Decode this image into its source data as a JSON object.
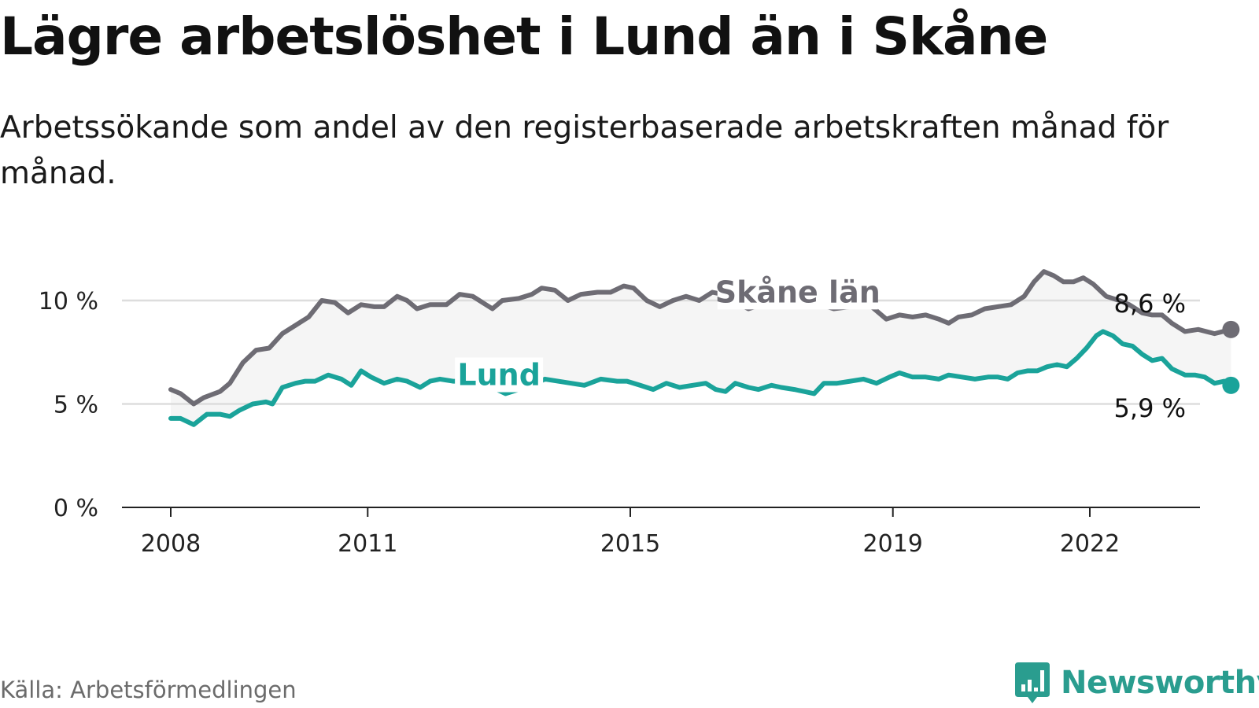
{
  "title": "Lägre arbetslöshet i Lund än i Skåne",
  "subtitle": "Arbetssökande som andel av den registerbaserade arbetskraften månad för månad.",
  "source": "Källa: Arbetsförmedlingen",
  "brand": "Newsworthy",
  "colors": {
    "skane": "#6e6c74",
    "lund": "#1aa39a",
    "band": "#f5f5f5",
    "grid": "#dddddd",
    "axis": "#222222",
    "brand": "#2a9d8f"
  },
  "chart_data": {
    "type": "line",
    "title": "Lägre arbetslöshet i Lund än i Skåne",
    "ylim": [
      0,
      11.5
    ],
    "xlim": [
      2007.5,
      2023.5
    ],
    "y_ticks": [
      0,
      5,
      10
    ],
    "y_tick_labels": [
      "0 %",
      "5 %",
      "10 %"
    ],
    "x_ticks": [
      2008,
      2011,
      2015,
      2019,
      2022
    ],
    "x_tick_labels": [
      "2008",
      "2011",
      "2015",
      "2019",
      "2022"
    ],
    "grid": true,
    "series": [
      {
        "name": "Skåne län",
        "label": "Skåne län",
        "end_label": "8,6 %",
        "points": [
          [
            2008.0,
            5.7
          ],
          [
            2008.15,
            5.5
          ],
          [
            2008.35,
            5.0
          ],
          [
            2008.5,
            5.3
          ],
          [
            2008.75,
            5.6
          ],
          [
            2008.9,
            6.0
          ],
          [
            2009.1,
            7.0
          ],
          [
            2009.3,
            7.6
          ],
          [
            2009.5,
            7.7
          ],
          [
            2009.7,
            8.4
          ],
          [
            2009.9,
            8.8
          ],
          [
            2010.1,
            9.2
          ],
          [
            2010.3,
            10.0
          ],
          [
            2010.5,
            9.9
          ],
          [
            2010.7,
            9.4
          ],
          [
            2010.9,
            9.8
          ],
          [
            2011.1,
            9.7
          ],
          [
            2011.25,
            9.7
          ],
          [
            2011.45,
            10.2
          ],
          [
            2011.6,
            10.0
          ],
          [
            2011.75,
            9.6
          ],
          [
            2011.95,
            9.8
          ],
          [
            2012.2,
            9.8
          ],
          [
            2012.4,
            10.3
          ],
          [
            2012.6,
            10.2
          ],
          [
            2012.75,
            9.9
          ],
          [
            2012.9,
            9.6
          ],
          [
            2013.05,
            10.0
          ],
          [
            2013.3,
            10.1
          ],
          [
            2013.5,
            10.3
          ],
          [
            2013.65,
            10.6
          ],
          [
            2013.85,
            10.5
          ],
          [
            2014.05,
            10.0
          ],
          [
            2014.25,
            10.3
          ],
          [
            2014.5,
            10.4
          ],
          [
            2014.7,
            10.4
          ],
          [
            2014.9,
            10.7
          ],
          [
            2015.05,
            10.6
          ],
          [
            2015.25,
            10.0
          ],
          [
            2015.45,
            9.7
          ],
          [
            2015.65,
            10.0
          ],
          [
            2015.85,
            10.2
          ],
          [
            2016.05,
            10.0
          ],
          [
            2016.25,
            10.4
          ],
          [
            2016.4,
            10.3
          ],
          [
            2016.6,
            9.9
          ],
          [
            2016.8,
            9.6
          ],
          [
            2017.0,
            9.8
          ],
          [
            2017.25,
            10.1
          ],
          [
            2017.45,
            10.3
          ],
          [
            2017.65,
            10.1
          ],
          [
            2017.9,
            9.8
          ],
          [
            2018.1,
            9.6
          ],
          [
            2018.35,
            9.7
          ],
          [
            2018.6,
            9.9
          ],
          [
            2018.75,
            9.5
          ],
          [
            2018.9,
            9.1
          ],
          [
            2019.1,
            9.3
          ],
          [
            2019.3,
            9.2
          ],
          [
            2019.5,
            9.3
          ],
          [
            2019.7,
            9.1
          ],
          [
            2019.85,
            8.9
          ],
          [
            2020.0,
            9.2
          ],
          [
            2020.2,
            9.3
          ],
          [
            2020.4,
            9.6
          ],
          [
            2020.6,
            9.7
          ],
          [
            2020.8,
            9.8
          ],
          [
            2021.0,
            10.2
          ],
          [
            2021.15,
            10.9
          ],
          [
            2021.3,
            11.4
          ],
          [
            2021.45,
            11.2
          ],
          [
            2021.6,
            10.9
          ],
          [
            2021.75,
            10.9
          ],
          [
            2021.9,
            11.1
          ],
          [
            2022.05,
            10.8
          ],
          [
            2022.25,
            10.2
          ],
          [
            2022.45,
            10.0
          ],
          [
            2022.6,
            9.8
          ],
          [
            2022.8,
            9.4
          ],
          [
            2022.95,
            9.3
          ],
          [
            2023.1,
            9.3
          ],
          [
            2023.25,
            8.9
          ],
          [
            2023.45,
            8.5
          ],
          [
            2023.65,
            8.6
          ],
          [
            2023.9,
            8.4
          ],
          [
            2024.15,
            8.6
          ]
        ]
      },
      {
        "name": "Lund",
        "label": "Lund",
        "end_label": "5,9 %",
        "points": [
          [
            2008.0,
            4.3
          ],
          [
            2008.15,
            4.3
          ],
          [
            2008.35,
            4.0
          ],
          [
            2008.55,
            4.5
          ],
          [
            2008.75,
            4.5
          ],
          [
            2008.9,
            4.4
          ],
          [
            2009.05,
            4.7
          ],
          [
            2009.25,
            5.0
          ],
          [
            2009.45,
            5.1
          ],
          [
            2009.55,
            5.0
          ],
          [
            2009.7,
            5.8
          ],
          [
            2009.9,
            6.0
          ],
          [
            2010.05,
            6.1
          ],
          [
            2010.2,
            6.1
          ],
          [
            2010.4,
            6.4
          ],
          [
            2010.6,
            6.2
          ],
          [
            2010.75,
            5.9
          ],
          [
            2010.9,
            6.6
          ],
          [
            2011.05,
            6.3
          ],
          [
            2011.25,
            6.0
          ],
          [
            2011.45,
            6.2
          ],
          [
            2011.6,
            6.1
          ],
          [
            2011.8,
            5.8
          ],
          [
            2011.95,
            6.1
          ],
          [
            2012.1,
            6.2
          ],
          [
            2012.3,
            6.1
          ],
          [
            2012.5,
            6.1
          ],
          [
            2012.7,
            6.0
          ],
          [
            2012.9,
            5.8
          ],
          [
            2013.1,
            5.5
          ],
          [
            2013.3,
            5.7
          ],
          [
            2013.5,
            5.9
          ],
          [
            2013.7,
            6.2
          ],
          [
            2013.9,
            6.1
          ],
          [
            2014.1,
            6.0
          ],
          [
            2014.3,
            5.9
          ],
          [
            2014.55,
            6.2
          ],
          [
            2014.8,
            6.1
          ],
          [
            2014.95,
            6.1
          ],
          [
            2015.15,
            5.9
          ],
          [
            2015.35,
            5.7
          ],
          [
            2015.55,
            6.0
          ],
          [
            2015.75,
            5.8
          ],
          [
            2015.95,
            5.9
          ],
          [
            2016.15,
            6.0
          ],
          [
            2016.3,
            5.7
          ],
          [
            2016.45,
            5.6
          ],
          [
            2016.6,
            6.0
          ],
          [
            2016.8,
            5.8
          ],
          [
            2016.95,
            5.7
          ],
          [
            2017.15,
            5.9
          ],
          [
            2017.3,
            5.8
          ],
          [
            2017.5,
            5.7
          ],
          [
            2017.65,
            5.6
          ],
          [
            2017.8,
            5.5
          ],
          [
            2017.95,
            6.0
          ],
          [
            2018.15,
            6.0
          ],
          [
            2018.35,
            6.1
          ],
          [
            2018.55,
            6.2
          ],
          [
            2018.75,
            6.0
          ],
          [
            2018.95,
            6.3
          ],
          [
            2019.1,
            6.5
          ],
          [
            2019.3,
            6.3
          ],
          [
            2019.5,
            6.3
          ],
          [
            2019.7,
            6.2
          ],
          [
            2019.85,
            6.4
          ],
          [
            2020.05,
            6.3
          ],
          [
            2020.25,
            6.2
          ],
          [
            2020.45,
            6.3
          ],
          [
            2020.6,
            6.3
          ],
          [
            2020.75,
            6.2
          ],
          [
            2020.9,
            6.5
          ],
          [
            2021.05,
            6.6
          ],
          [
            2021.2,
            6.6
          ],
          [
            2021.35,
            6.8
          ],
          [
            2021.5,
            6.9
          ],
          [
            2021.65,
            6.8
          ],
          [
            2021.8,
            7.2
          ],
          [
            2021.95,
            7.7
          ],
          [
            2022.1,
            8.3
          ],
          [
            2022.2,
            8.5
          ],
          [
            2022.35,
            8.3
          ],
          [
            2022.5,
            7.9
          ],
          [
            2022.65,
            7.8
          ],
          [
            2022.8,
            7.4
          ],
          [
            2022.95,
            7.1
          ],
          [
            2023.1,
            7.2
          ],
          [
            2023.25,
            6.7
          ],
          [
            2023.45,
            6.4
          ],
          [
            2023.6,
            6.4
          ],
          [
            2023.75,
            6.3
          ],
          [
            2023.9,
            6.0
          ],
          [
            2024.05,
            6.1
          ],
          [
            2024.15,
            5.9
          ]
        ]
      }
    ]
  }
}
